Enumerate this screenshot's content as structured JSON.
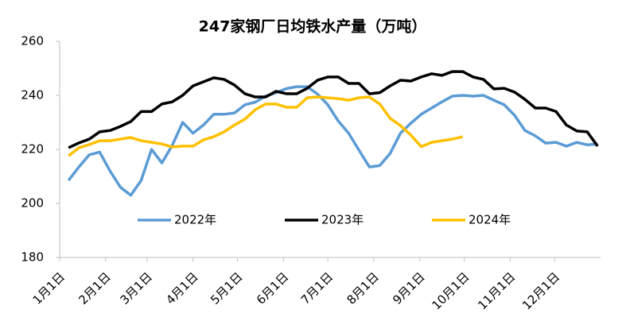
{
  "chart_data": {
    "type": "line",
    "title": "247家钢厂日均铁水产量（万吨）",
    "x": [
      6,
      13,
      20,
      27,
      34,
      41,
      48,
      55,
      62,
      69,
      76,
      83,
      90,
      97,
      104,
      111,
      118,
      125,
      132,
      139,
      146,
      153,
      160,
      167,
      174,
      181,
      188,
      195,
      202,
      209,
      216,
      223,
      230,
      237,
      244,
      251,
      258,
      265,
      272,
      279,
      286,
      293,
      300,
      307,
      314,
      321,
      328,
      335,
      342,
      349,
      356,
      363
    ],
    "series": [
      {
        "name": "2022年",
        "color": "#5b9bd5",
        "values": [
          208.5,
          213.5,
          218,
          219,
          212,
          206,
          203,
          208.5,
          220,
          215,
          221.5,
          230,
          226,
          229,
          233,
          233,
          233.5,
          236.5,
          237.5,
          239.7,
          241,
          242.5,
          243.2,
          243.2,
          240.5,
          236.5,
          230.5,
          226,
          219.7,
          213.5,
          214,
          218.5,
          226,
          229.7,
          233,
          235.3,
          237.6,
          239.7,
          240,
          239.7,
          240,
          238.2,
          236.5,
          232.6,
          227,
          225,
          222.3,
          222.6,
          221.2,
          222.6,
          221.7,
          222
        ]
      },
      {
        "name": "2023年",
        "color": "#000000",
        "values": [
          220.6,
          222.4,
          223.8,
          226.5,
          227,
          228.5,
          230.3,
          234,
          234,
          236.8,
          237.6,
          240,
          243.5,
          245,
          246.5,
          245.9,
          243.8,
          240.6,
          239.4,
          239.4,
          241.5,
          240.6,
          240.6,
          242.6,
          245.6,
          246.8,
          246.8,
          244.4,
          244.4,
          240.6,
          241,
          243.5,
          245.6,
          245.3,
          246.8,
          248,
          247.4,
          248.8,
          248.8,
          246.8,
          245.9,
          242.4,
          242.6,
          241.2,
          238.5,
          235.3,
          235.3,
          234,
          229,
          226.8,
          226.5,
          221.2
        ]
      },
      {
        "name": "2024年",
        "color": "#ffc000",
        "values": [
          217.6,
          220.6,
          221.8,
          223.2,
          223.2,
          223.8,
          224.4,
          223.2,
          222.6,
          222,
          220.9,
          221.2,
          221.2,
          223.5,
          224.7,
          226.5,
          229,
          231.2,
          234.7,
          236.8,
          236.8,
          235.6,
          235.6,
          239.1,
          239.4,
          239.1,
          238.8,
          238.2,
          239.1,
          239.4,
          236.8,
          231.5,
          228.8,
          225.3,
          221,
          222.6,
          223.2,
          223.8,
          224.7,
          null,
          null,
          null,
          null,
          null,
          null,
          null,
          null,
          null,
          null,
          null,
          null,
          null
        ]
      }
    ],
    "xlim": [
      0,
      365
    ],
    "xticks": [
      {
        "value": 0,
        "label": "1月1日"
      },
      {
        "value": 31,
        "label": "2月1日"
      },
      {
        "value": 59,
        "label": "3月1日"
      },
      {
        "value": 90,
        "label": "4月1日"
      },
      {
        "value": 120,
        "label": "5月1日"
      },
      {
        "value": 151,
        "label": "6月1日"
      },
      {
        "value": 181,
        "label": "7月1日"
      },
      {
        "value": 212,
        "label": "8月1日"
      },
      {
        "value": 243,
        "label": "9月1日"
      },
      {
        "value": 273,
        "label": "10月1日"
      },
      {
        "value": 304,
        "label": "11月1日"
      },
      {
        "value": 334,
        "label": "12月1日"
      }
    ],
    "ylim": [
      180,
      260
    ],
    "yticks": [
      180,
      200,
      220,
      240,
      260
    ]
  }
}
